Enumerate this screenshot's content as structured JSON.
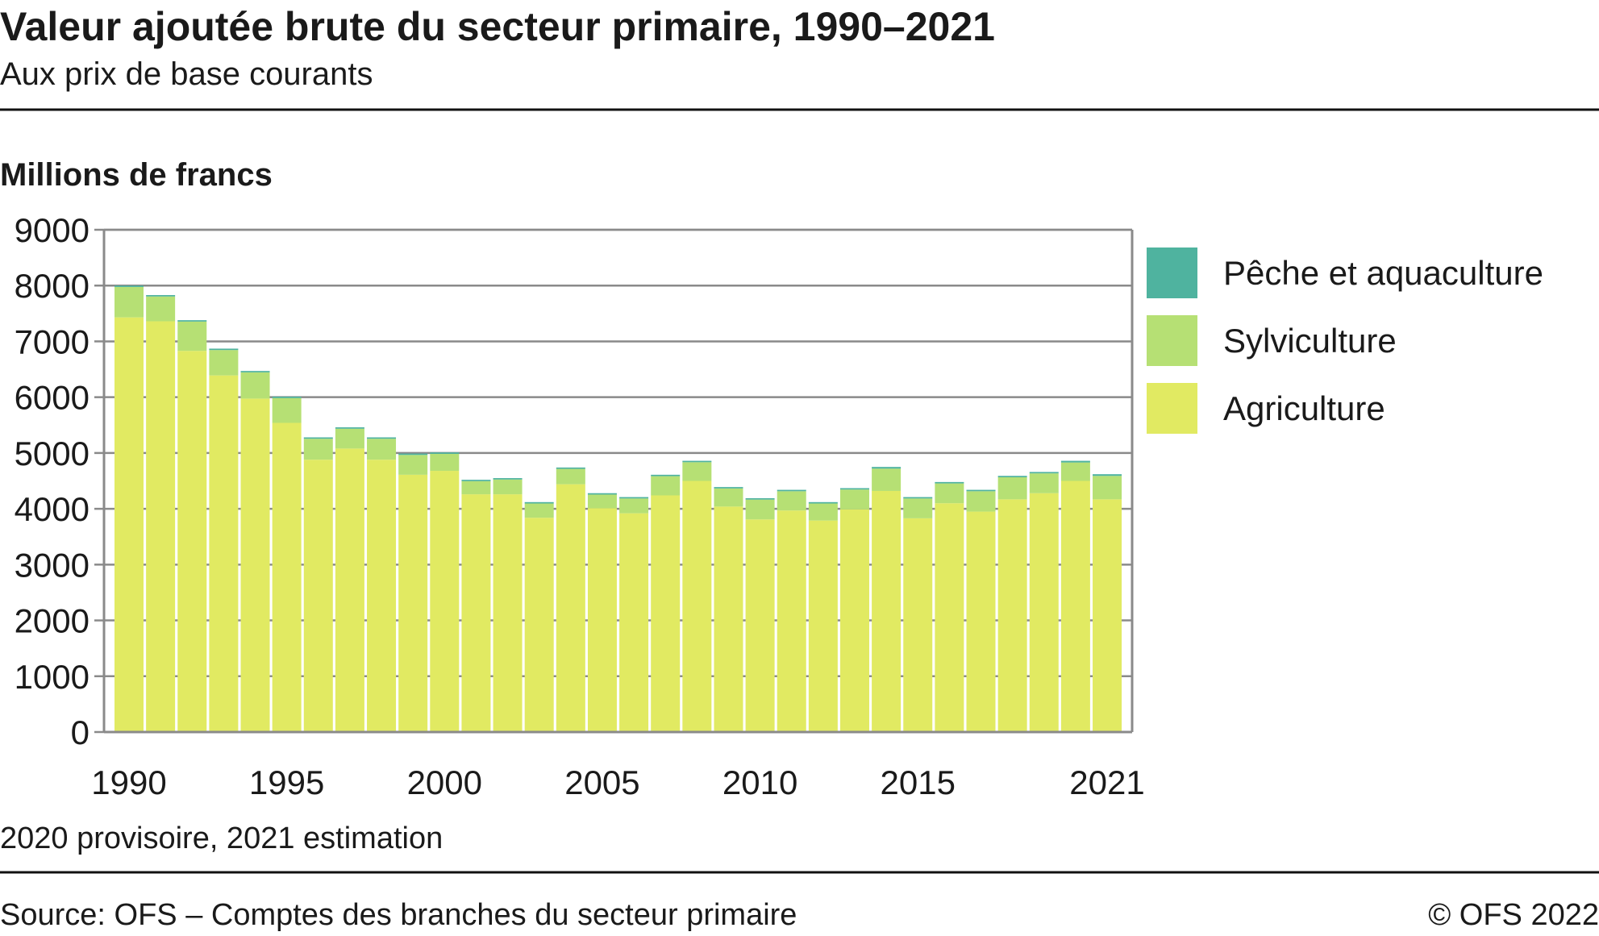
{
  "header": {
    "title": "Valeur ajoutée brute du secteur primaire, 1990–2021",
    "subtitle": "Aux prix de base courants"
  },
  "footer": {
    "note": "2020 provisoire, 2021 estimation",
    "source": "Source: OFS – Comptes des branches du secteur primaire",
    "copyright": "© OFS 2022"
  },
  "chart_data": {
    "type": "bar",
    "stacked": true,
    "title": "Valeur ajoutée brute du secteur primaire, 1990–2021",
    "ylabel": "Millions de francs",
    "xlabel": "",
    "ylim": [
      0,
      9000
    ],
    "yticks": [
      0,
      1000,
      2000,
      3000,
      4000,
      5000,
      6000,
      7000,
      8000,
      9000
    ],
    "xtick_labels": [
      "1990",
      "1995",
      "2000",
      "2005",
      "2010",
      "2015",
      "2021"
    ],
    "grid": true,
    "legend_position": "right",
    "categories": [
      "1990",
      "1991",
      "1992",
      "1993",
      "1994",
      "1995",
      "1996",
      "1997",
      "1998",
      "1999",
      "2000",
      "2001",
      "2002",
      "2003",
      "2004",
      "2005",
      "2006",
      "2007",
      "2008",
      "2009",
      "2010",
      "2011",
      "2012",
      "2013",
      "2014",
      "2015",
      "2016",
      "2017",
      "2018",
      "2019",
      "2020",
      "2021"
    ],
    "series": [
      {
        "name": "Agriculture",
        "color": "#e1ea62",
        "values": [
          7430,
          7360,
          6830,
          6390,
          5975,
          5540,
          4880,
          5080,
          4880,
          4610,
          4680,
          4260,
          4260,
          3840,
          4440,
          4010,
          3920,
          4240,
          4500,
          4040,
          3810,
          3970,
          3790,
          3990,
          4320,
          3830,
          4100,
          3950,
          4170,
          4280,
          4500,
          4170
        ]
      },
      {
        "name": "Sylviculture",
        "color": "#b6e074",
        "values": [
          545,
          445,
          525,
          455,
          470,
          445,
          375,
          355,
          375,
          355,
          305,
          235,
          265,
          255,
          275,
          245,
          265,
          345,
          335,
          325,
          355,
          345,
          305,
          355,
          400,
          355,
          355,
          365,
          395,
          355,
          330,
          420
        ]
      },
      {
        "name": "Pêche et aquaculture",
        "color": "#4fb39f",
        "values": [
          25,
          25,
          25,
          25,
          25,
          25,
          25,
          25,
          25,
          25,
          25,
          25,
          25,
          25,
          25,
          25,
          25,
          25,
          25,
          25,
          25,
          25,
          25,
          25,
          30,
          25,
          25,
          25,
          25,
          25,
          30,
          30
        ]
      }
    ],
    "legend_order": [
      "Pêche et aquaculture",
      "Sylviculture",
      "Agriculture"
    ]
  }
}
